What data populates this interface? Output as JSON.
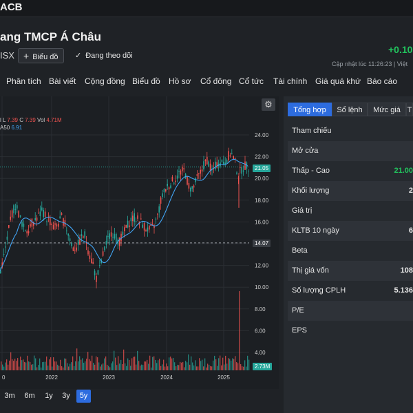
{
  "header": {
    "ticker": "ACB",
    "company": "ang TMCP Á Châu",
    "exchange": "ISX",
    "chart_button": "Biểu đồ",
    "follow_text": "Đang theo dõi",
    "price_change": "+0.10",
    "updated": "Cập nhật lúc  11:26:23 | Việt"
  },
  "nav": [
    "Phân tích",
    "Bài viết",
    "Cộng đồng",
    "Biểu đồ",
    "Hồ sơ",
    "Cổ đông",
    "Cổ tức",
    "Tài chính",
    "Giá quá khứ",
    "Báo cáo"
  ],
  "legend": {
    "ohlc_prefix": "l",
    "low_label": "L",
    "low_value": "7.39",
    "close_label": "C",
    "close_value": "7.39",
    "vol_label": "Vol",
    "vol_value": "4.71M",
    "ma_prefix": "A50",
    "ma_value": "6.91"
  },
  "chart_data": {
    "type": "candlestick",
    "y_ticks": [
      "24.00",
      "22.00",
      "20.00",
      "18.00",
      "16.00",
      "14.00",
      "12.00",
      "10.00",
      "8.00",
      "6.00",
      "4.00"
    ],
    "x_ticks": [
      "0",
      "2022",
      "2023",
      "2024",
      "2025"
    ],
    "ylim": [
      2.5,
      25
    ],
    "last_price_tag": "21.05",
    "ref_price_tag": "14.07",
    "volume_tag": "2.73M",
    "ref_price_line": 14.07,
    "closes_trace": [
      11.5,
      13,
      15,
      16.8,
      17.6,
      16.5,
      15.5,
      15.2,
      15.8,
      16.2,
      16.6,
      17,
      16.4,
      16,
      15.4,
      15.8,
      16.4,
      15.6,
      14.6,
      13.5,
      13.7,
      14.5,
      14.8,
      13.2,
      12.2,
      10.8,
      11.8,
      13.4,
      14.3,
      15.2,
      14.6,
      14.2,
      14.8,
      15.6,
      16.2,
      16.4,
      16.2,
      15.8,
      15.4,
      15.2,
      15.6,
      16.6,
      18.2,
      19,
      19.4,
      19.8,
      20.2,
      20.6,
      20.8,
      19.4,
      18.9,
      19.8,
      20.4,
      21.2,
      21.8,
      20.6,
      21.1,
      21.6,
      21.4,
      21.8,
      22.4,
      21.7,
      20.3,
      20.9,
      21.2,
      21.05
    ],
    "colors": {
      "up": "#26a69a",
      "down": "#ef5350",
      "ma": "#42a5f5"
    }
  },
  "ranges": [
    "3m",
    "6m",
    "1y",
    "3y",
    "5y"
  ],
  "active_range": "5y",
  "tabs": [
    "Tổng hợp",
    "Sổ lệnh",
    "Mức giá",
    "T"
  ],
  "stats": [
    {
      "label": "Tham chiếu",
      "value": ""
    },
    {
      "label": "Mở cửa",
      "value": ""
    },
    {
      "label": "Thấp - Cao",
      "value": "21.00"
    },
    {
      "label": "Khối lượng",
      "value": "2"
    },
    {
      "label": "Giá trị",
      "value": ""
    },
    {
      "label": "KLTB 10 ngày",
      "value": "6"
    },
    {
      "label": "Beta",
      "value": ""
    },
    {
      "label": "Thị giá vốn",
      "value": "108"
    },
    {
      "label": "Số lượng CPLH",
      "value": "5.136"
    },
    {
      "label": "P/E",
      "value": ""
    },
    {
      "label": "EPS",
      "value": ""
    }
  ]
}
